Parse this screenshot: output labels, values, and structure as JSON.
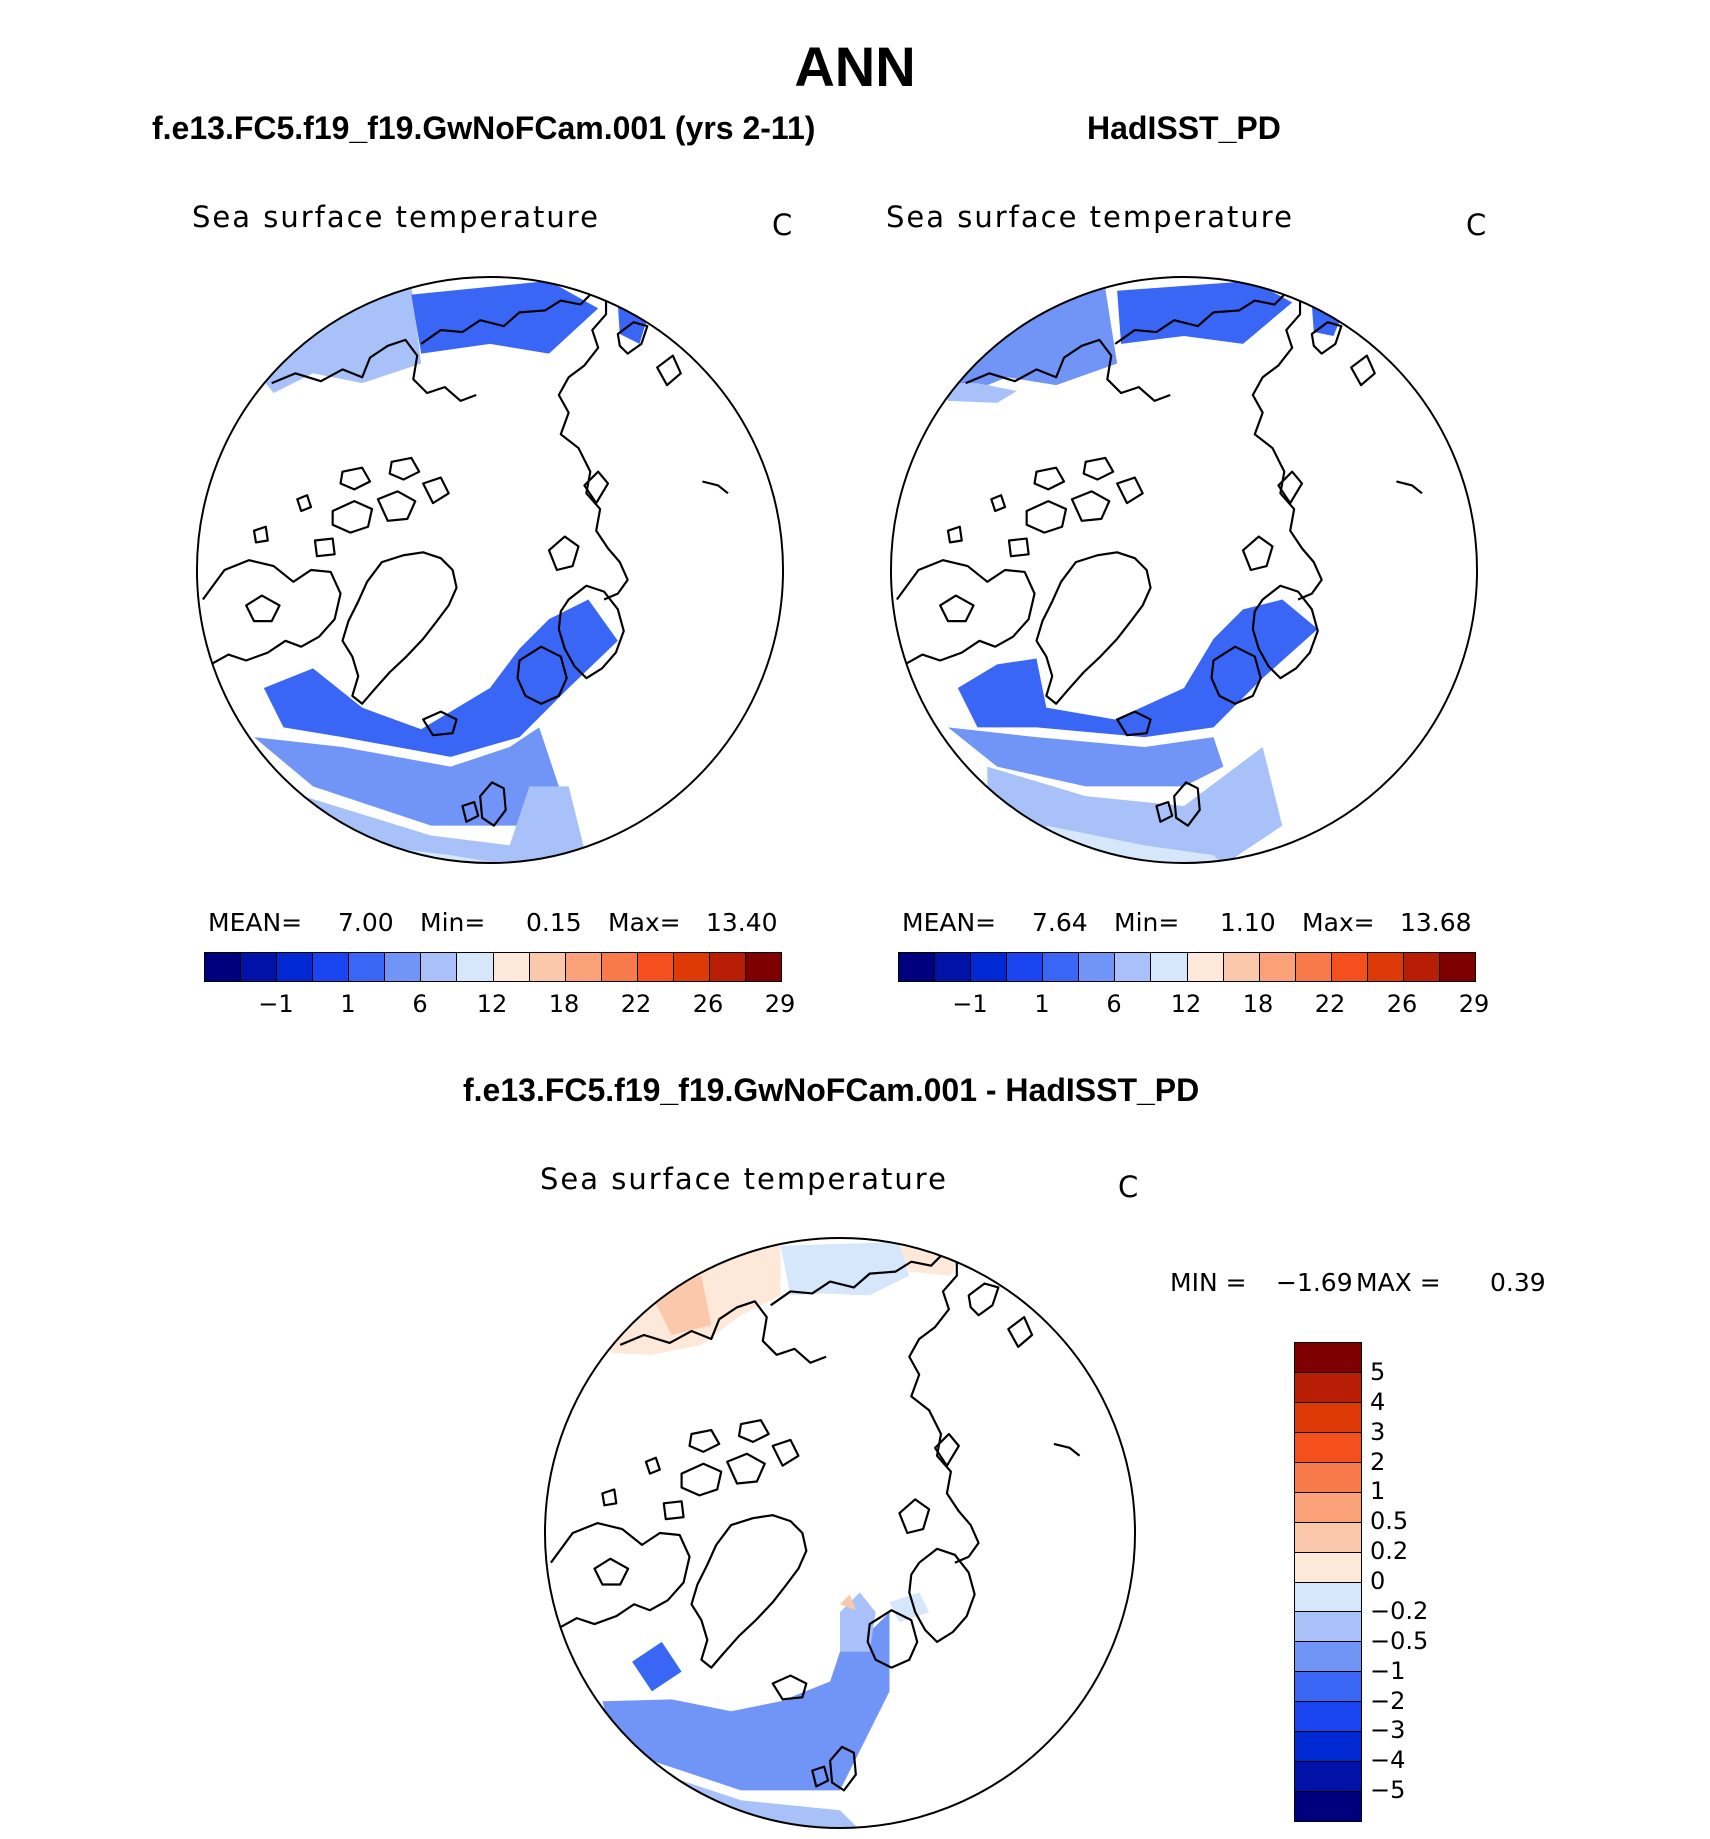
{
  "page_title": "ANN",
  "panels": [
    {
      "title": "f.e13.FC5.f19_f19.GwNoFCam.001 (yrs 2-11)",
      "variable": "Sea surface temperature",
      "units": "C",
      "stats": {
        "mean_label": "MEAN=",
        "mean": "7.00",
        "min_label": "Min=",
        "min": "0.15",
        "max_label": "Max=",
        "max": "13.40"
      }
    },
    {
      "title": "HadISST_PD",
      "variable": "Sea surface temperature",
      "units": "C",
      "stats": {
        "mean_label": "MEAN=",
        "mean": "7.64",
        "min_label": "Min=",
        "min": "1.10",
        "max_label": "Max=",
        "max": "13.68"
      }
    },
    {
      "title": "f.e13.FC5.f19_f19.GwNoFCam.001 - HadISST_PD",
      "variable": "Sea surface temperature",
      "units": "C",
      "stats": {
        "min_label": "MIN =",
        "min": "−1.69",
        "max_label": "MAX =",
        "max": "0.39"
      }
    }
  ],
  "colorbar_abs": {
    "colors": [
      "#00007f",
      "#0012a8",
      "#0029d4",
      "#1a44f0",
      "#3a66f5",
      "#7194f7",
      "#a8c2f9",
      "#d6e6fb",
      "#fde8da",
      "#fcc8ab",
      "#fba17a",
      "#f87a4b",
      "#f44f1c",
      "#dd3a08",
      "#b81e05",
      "#7f0000"
    ],
    "labels": [
      "−1",
      "1",
      "6",
      "12",
      "18",
      "22",
      "26",
      "29"
    ]
  },
  "colorbar_diff": {
    "colors": [
      "#7f0000",
      "#b81e05",
      "#dd3a08",
      "#f44f1c",
      "#f87a4b",
      "#fba17a",
      "#fcc8ab",
      "#fde8da",
      "#d6e6fb",
      "#a8c2f9",
      "#7194f7",
      "#3a66f5",
      "#1a44f0",
      "#0029d4",
      "#0012a8",
      "#00007f"
    ],
    "labels": [
      "5",
      "4",
      "3",
      "2",
      "1",
      "0.5",
      "0.2",
      "0",
      "−0.2",
      "−0.5",
      "−1",
      "−2",
      "−3",
      "−4",
      "−5"
    ]
  }
}
